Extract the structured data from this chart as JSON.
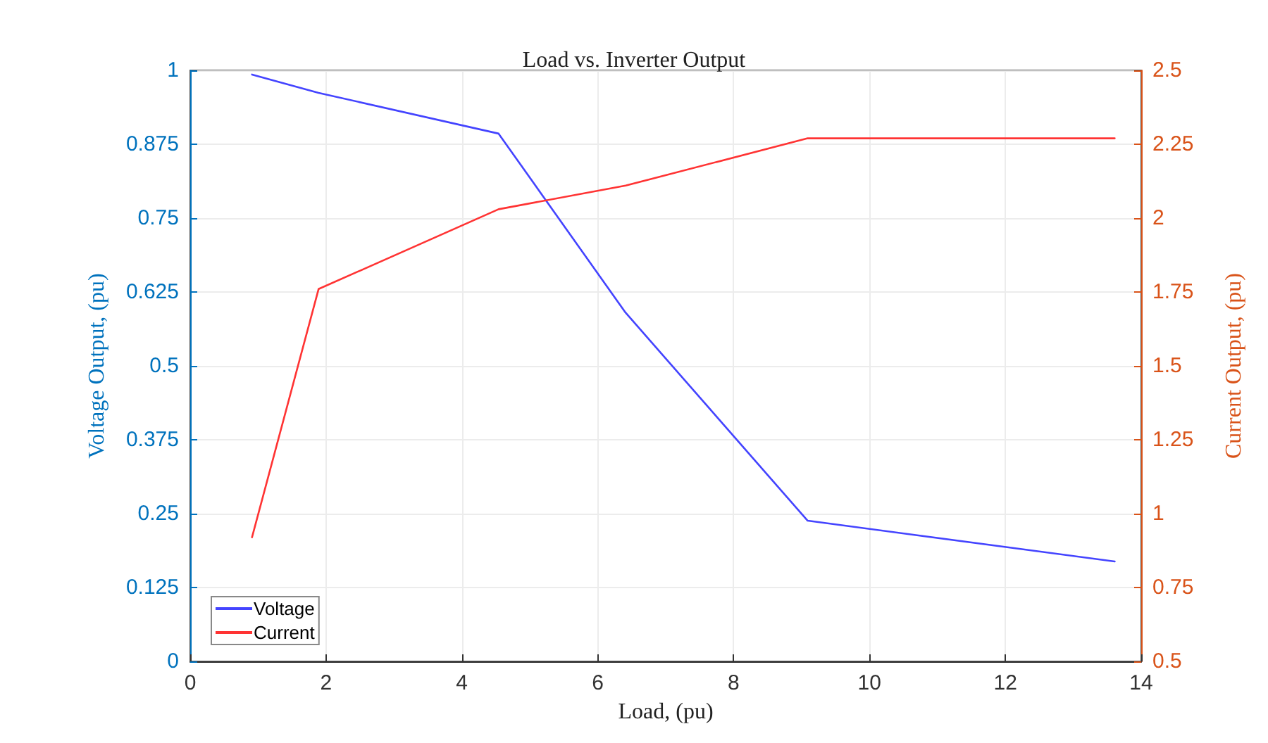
{
  "chart_data": {
    "type": "line",
    "title": "Load vs. Inverter Output",
    "xlabel": "Load, (pu)",
    "ylabel": "Voltage Output, (pu)",
    "y2label": "Current Output, (pu)",
    "x": [
      0.91,
      1.89,
      4.54,
      6.41,
      9.09,
      13.61
    ],
    "series": [
      {
        "name": "Voltage",
        "color": "#4444ff",
        "values": [
          0.993,
          0.962,
          0.893,
          0.59,
          0.238,
          0.169
        ]
      },
      {
        "name": "Current",
        "color": "#ff3333",
        "axis": "y2",
        "values": [
          0.92,
          1.76,
          2.03,
          2.11,
          2.27,
          2.27
        ]
      }
    ],
    "xlim": [
      0,
      14
    ],
    "xticks": [
      0,
      2,
      4,
      6,
      8,
      10,
      12,
      14
    ],
    "ylim": [
      0,
      1
    ],
    "yticks": [
      0,
      0.125,
      0.25,
      0.375,
      0.5,
      0.625,
      0.75,
      0.875,
      1
    ],
    "y2lim": [
      0.5,
      2.5
    ],
    "y2ticks": [
      0.5,
      0.75,
      1,
      1.25,
      1.5,
      1.75,
      2,
      2.25,
      2.5
    ],
    "grid": true,
    "legend": "bottom left",
    "marker": "none",
    "line_style": "solid"
  }
}
